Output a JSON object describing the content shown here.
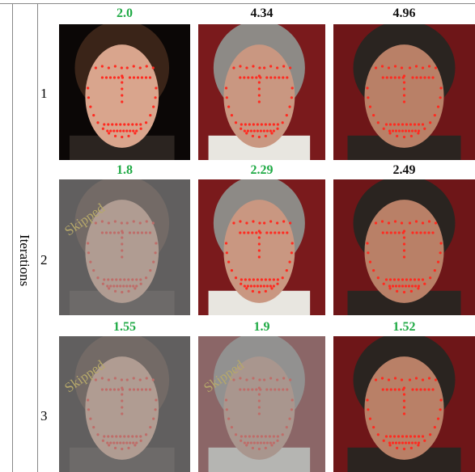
{
  "figure": {
    "axis_label": "Iterations",
    "rows": [
      {
        "label": "1",
        "cells": [
          {
            "score": "2.0"
          },
          {
            "score": "4.34"
          },
          {
            "score": "4.96"
          }
        ]
      },
      {
        "label": "2",
        "cells": [
          {
            "score": "1.8",
            "overlay": "Skipped"
          },
          {
            "score": "2.29"
          },
          {
            "score": "2.49"
          }
        ]
      },
      {
        "label": "3",
        "cells": [
          {
            "score": "1.55",
            "overlay": "Skipped"
          },
          {
            "score": "1.9",
            "overlay": "Skipped"
          },
          {
            "score": "1.52"
          }
        ]
      }
    ]
  }
}
